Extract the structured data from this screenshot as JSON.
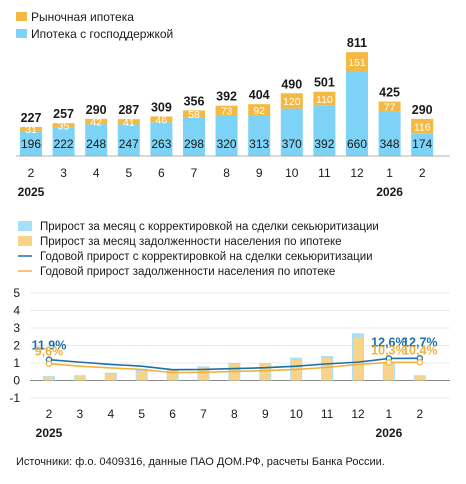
{
  "colors": {
    "market": "#F4B942",
    "state": "#7DD3F5",
    "line_blue": "#1E6FA8",
    "line_orange": "#F0B23E",
    "bar2_blue": "#A6E0F7",
    "bar2_orange": "#F8D48A"
  },
  "chart_data": [
    {
      "type": "bar",
      "stacked": true,
      "categories": [
        "2",
        "3",
        "4",
        "5",
        "6",
        "7",
        "8",
        "9",
        "10",
        "11",
        "12",
        "1",
        "2"
      ],
      "year_labels": [
        {
          "text": "2025",
          "at_index": 0
        },
        {
          "text": "2026",
          "at_index": 11
        }
      ],
      "series": [
        {
          "name": "Ипотека с господдержкой",
          "values": [
            196,
            222,
            248,
            247,
            263,
            298,
            320,
            313,
            370,
            392,
            660,
            348,
            174
          ]
        },
        {
          "name": "Рыночная ипотека",
          "values": [
            31,
            35,
            42,
            41,
            46,
            58,
            73,
            92,
            120,
            110,
            151,
            77,
            116
          ]
        }
      ],
      "totals": [
        227,
        257,
        290,
        287,
        309,
        356,
        392,
        404,
        490,
        501,
        811,
        425,
        290
      ],
      "legend": [
        "Рыночная ипотека",
        "Ипотека с господдержкой"
      ],
      "legend_position": "top-left"
    },
    {
      "type": "bar+line",
      "categories": [
        "2",
        "3",
        "4",
        "5",
        "6",
        "7",
        "8",
        "9",
        "10",
        "11",
        "12",
        "1",
        "2"
      ],
      "year_labels": [
        {
          "text": "2025",
          "at_index": 0
        },
        {
          "text": "2026",
          "at_index": 11
        }
      ],
      "ylim": [
        -1,
        5
      ],
      "yticks": [
        "-1",
        "0",
        "1",
        "2",
        "3",
        "4",
        "5"
      ],
      "grid": true,
      "legend": [
        "Прирост за месяц с корректировкой на сделки секьюритизации",
        "Прирост за месяц задолженности населения по ипотеке",
        "Годовой прирост с корректировкой на сделки секьюритизации",
        "Годовой прирост задолженности населения по ипотеке"
      ],
      "monthly_adjusted": [
        0.25,
        0.3,
        0.45,
        0.6,
        0.65,
        0.8,
        1.0,
        1.0,
        1.3,
        1.4,
        2.7,
        1.05,
        0.3
      ],
      "monthly_debt": [
        0.2,
        0.25,
        0.4,
        0.55,
        0.6,
        0.75,
        0.95,
        0.95,
        1.2,
        1.3,
        2.45,
        0.95,
        0.25
      ],
      "annual_adjusted": [
        1.19,
        1.05,
        0.92,
        0.82,
        0.62,
        0.63,
        0.68,
        0.73,
        0.82,
        0.95,
        1.05,
        1.26,
        1.27
      ],
      "annual_debt": [
        0.96,
        0.82,
        0.72,
        0.63,
        0.45,
        0.47,
        0.52,
        0.56,
        0.63,
        0.75,
        0.92,
        1.03,
        1.04
      ],
      "annotations": [
        {
          "text": "11,9%",
          "series": "annual_adjusted",
          "index": 0
        },
        {
          "text": "9,6%",
          "series": "annual_debt",
          "index": 0
        },
        {
          "text": "12,6%",
          "series": "annual_adjusted",
          "index": 11
        },
        {
          "text": "12,7%",
          "series": "annual_adjusted",
          "index": 12
        },
        {
          "text": "10,3%",
          "series": "annual_debt",
          "index": 11
        },
        {
          "text": "10,4%",
          "series": "annual_debt",
          "index": 12
        }
      ]
    }
  ],
  "source": "Источники: ф.о. 0409316, данные ПАО ДОМ.РФ, расчеты Банка России."
}
